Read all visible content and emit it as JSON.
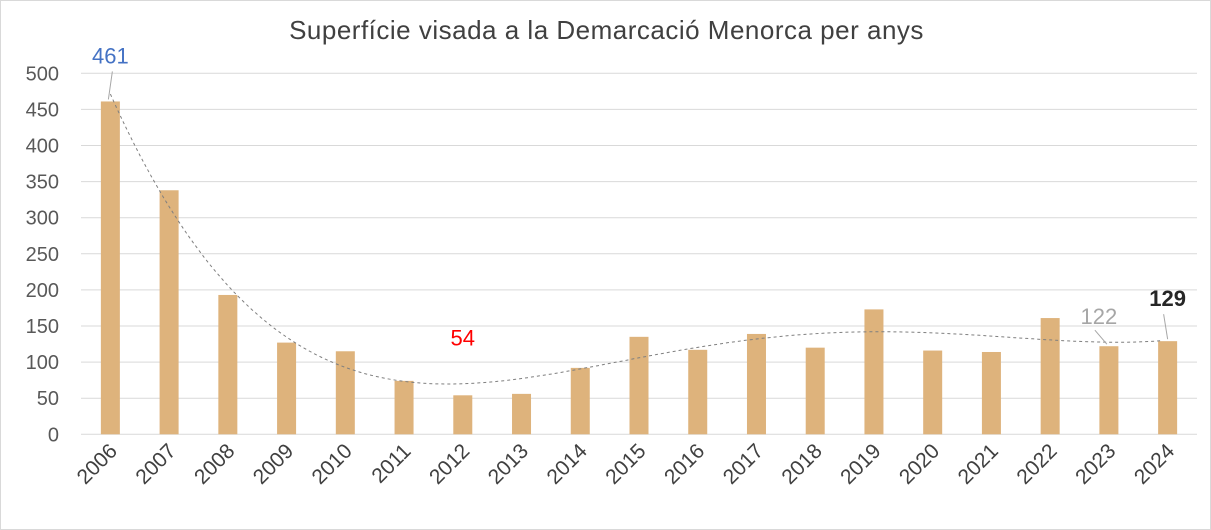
{
  "chart_data": {
    "type": "bar",
    "title": "Superfície visada a la Demarcació Menorca per anys",
    "categories": [
      "2006",
      "2007",
      "2008",
      "2009",
      "2010",
      "2011",
      "2012",
      "2013",
      "2014",
      "2015",
      "2016",
      "2017",
      "2018",
      "2019",
      "2020",
      "2021",
      "2022",
      "2023",
      "2024"
    ],
    "values": [
      461,
      338,
      193,
      127,
      115,
      74,
      54,
      56,
      92,
      135,
      117,
      139,
      120,
      173,
      116,
      114,
      161,
      122,
      129
    ],
    "ylim": [
      0,
      500
    ],
    "yticks": [
      "0",
      "50",
      "100",
      "150",
      "200",
      "250",
      "300",
      "350",
      "400",
      "450",
      "500"
    ],
    "grid": true,
    "trendline": "polynomial order 4",
    "data_labels": [
      {
        "category": "2006",
        "text": "461",
        "color": "#4472C4"
      },
      {
        "category": "2012",
        "text": "54",
        "color": "#FF0000"
      },
      {
        "category": "2023",
        "text": "122",
        "color": "#A6A6A6"
      },
      {
        "category": "2024",
        "text": "129",
        "color": "#262626"
      }
    ],
    "bar_color": "#DEB37C"
  }
}
